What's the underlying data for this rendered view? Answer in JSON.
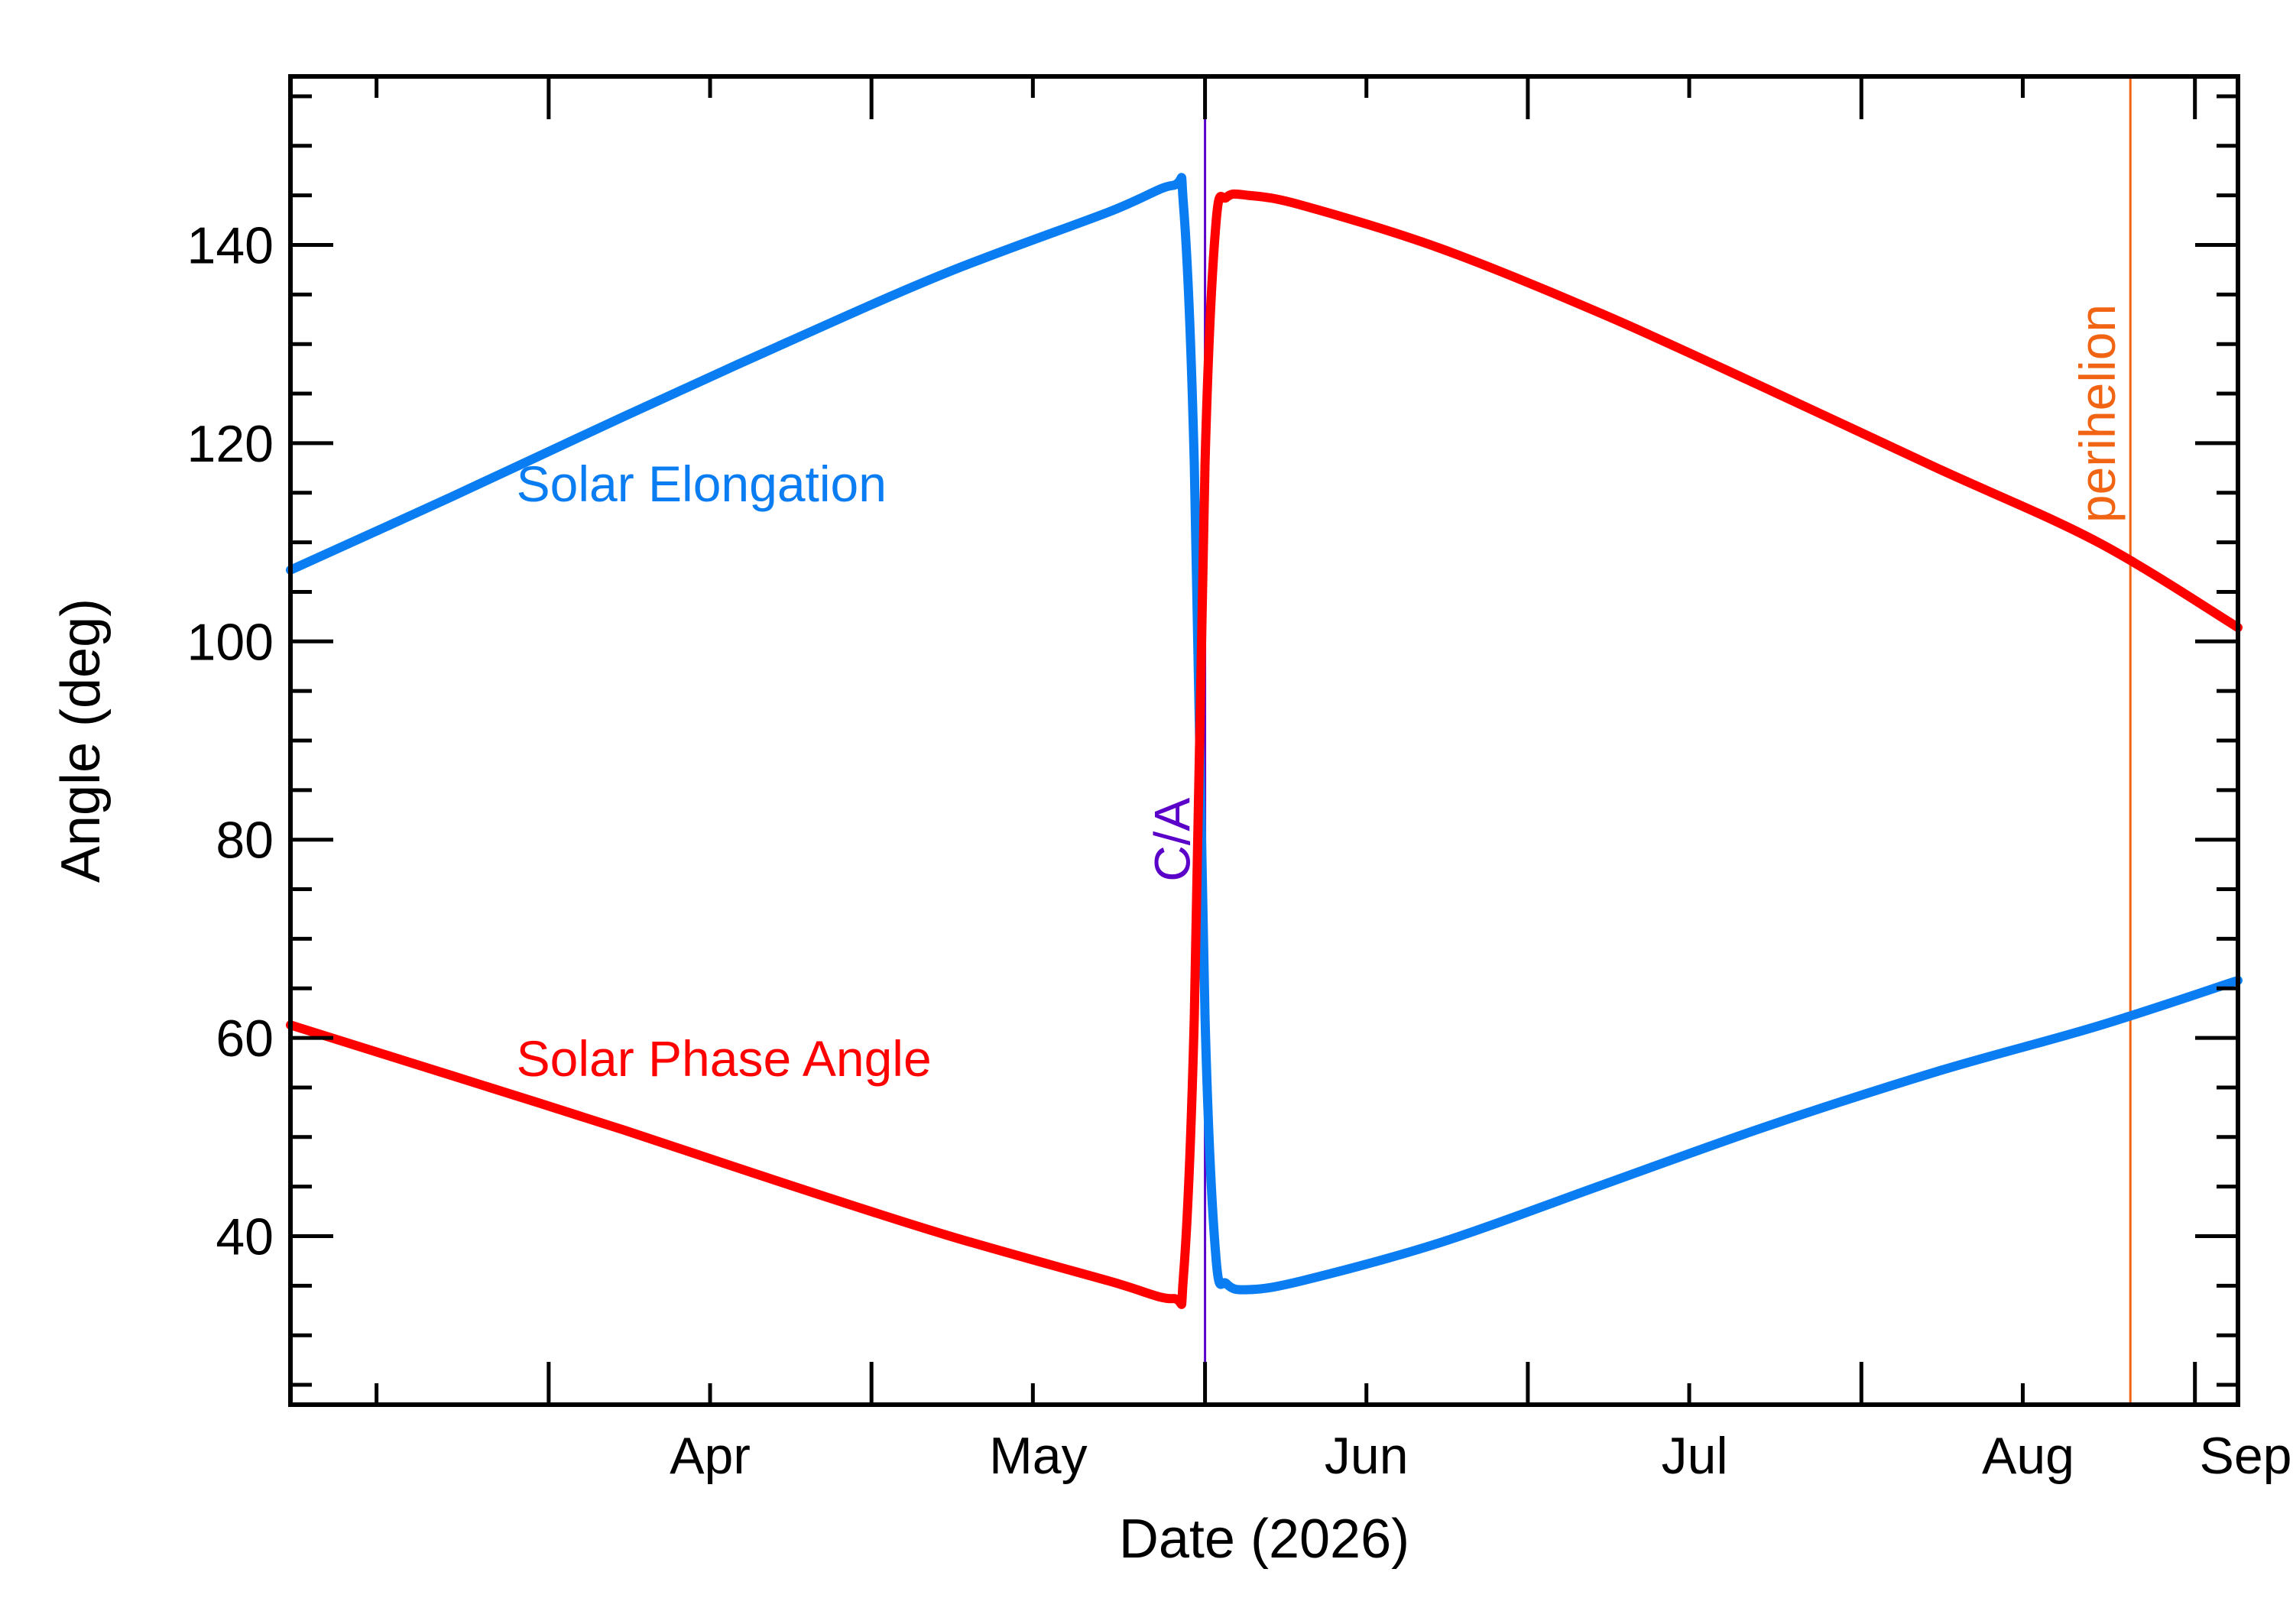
{
  "chart_data": {
    "type": "line",
    "xlabel": "Date (2026)",
    "ylabel": "Angle (deg)",
    "xlim": [
      "2026-03-08",
      "2026-09-05"
    ],
    "ylim": [
      23,
      157
    ],
    "x_tick_labels": [
      {
        "label": "Apr",
        "date": "2026-04-01"
      },
      {
        "label": "May",
        "date": "2026-05-01"
      },
      {
        "label": "Jun",
        "date": "2026-06-01"
      },
      {
        "label": "Jul",
        "date": "2026-07-01"
      },
      {
        "label": "Aug",
        "date": "2026-08-01"
      },
      {
        "label": "Sep",
        "date": "2026-09-01"
      }
    ],
    "y_ticks": [
      40,
      60,
      80,
      100,
      120,
      140
    ],
    "grid": false,
    "series": [
      {
        "name": "Solar Elongation",
        "color": "#0a7df2",
        "points": [
          {
            "x": "2026-03-08",
            "y": 107.2
          },
          {
            "x": "2026-03-23",
            "y": 114.6
          },
          {
            "x": "2026-04-08",
            "y": 122.7
          },
          {
            "x": "2026-04-23",
            "y": 130.1
          },
          {
            "x": "2026-05-08",
            "y": 137.2
          },
          {
            "x": "2026-05-23",
            "y": 143.3
          },
          {
            "x": "2026-05-29",
            "y": 146.0
          },
          {
            "x": "2026-05-30",
            "y": 144.0
          },
          {
            "x": "2026-05-31",
            "y": 118.0
          },
          {
            "x": "2026-06-01",
            "y": 62.0
          },
          {
            "x": "2026-06-02",
            "y": 38.0
          },
          {
            "x": "2026-06-03",
            "y": 35.2
          },
          {
            "x": "2026-06-05",
            "y": 34.6
          },
          {
            "x": "2026-06-10",
            "y": 35.5
          },
          {
            "x": "2026-06-23",
            "y": 39.4
          },
          {
            "x": "2026-07-08",
            "y": 45.2
          },
          {
            "x": "2026-07-23",
            "y": 51.0
          },
          {
            "x": "2026-08-08",
            "y": 56.6
          },
          {
            "x": "2026-08-23",
            "y": 61.2
          },
          {
            "x": "2026-09-05",
            "y": 65.8
          }
        ]
      },
      {
        "name": "Solar Phase Angle",
        "color": "#ff0000",
        "points": [
          {
            "x": "2026-03-08",
            "y": 61.3
          },
          {
            "x": "2026-03-23",
            "y": 56.2
          },
          {
            "x": "2026-04-08",
            "y": 50.7
          },
          {
            "x": "2026-04-23",
            "y": 45.3
          },
          {
            "x": "2026-05-08",
            "y": 40.1
          },
          {
            "x": "2026-05-23",
            "y": 35.5
          },
          {
            "x": "2026-05-29",
            "y": 33.7
          },
          {
            "x": "2026-05-30",
            "y": 36.0
          },
          {
            "x": "2026-05-31",
            "y": 62.0
          },
          {
            "x": "2026-06-01",
            "y": 118.0
          },
          {
            "x": "2026-06-02",
            "y": 142.0
          },
          {
            "x": "2026-06-03",
            "y": 144.8
          },
          {
            "x": "2026-06-05",
            "y": 145.0
          },
          {
            "x": "2026-06-10",
            "y": 144.0
          },
          {
            "x": "2026-06-23",
            "y": 139.6
          },
          {
            "x": "2026-07-08",
            "y": 133.0
          },
          {
            "x": "2026-07-23",
            "y": 125.6
          },
          {
            "x": "2026-08-08",
            "y": 117.5
          },
          {
            "x": "2026-08-23",
            "y": 110.0
          },
          {
            "x": "2026-09-05",
            "y": 101.4
          }
        ]
      }
    ],
    "series_labels": [
      {
        "text": "Solar Elongation",
        "color": "#0a7df2",
        "x": "2026-03-29",
        "y": 116
      },
      {
        "text": "Solar Phase Angle",
        "color": "#ff0000",
        "x": "2026-03-29",
        "y": 58
      }
    ],
    "vertical_markers": [
      {
        "label": "C/A",
        "date": "2026-06-01",
        "color": "#5a00c8"
      },
      {
        "label": "perihelion",
        "date": "2026-08-26",
        "color": "#f06414"
      }
    ]
  }
}
